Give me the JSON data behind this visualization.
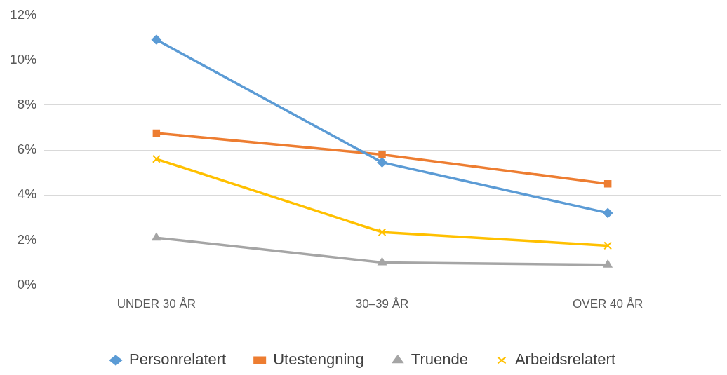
{
  "chart_data": {
    "type": "line",
    "categories": [
      "UNDER 30 ÅR",
      "30–39 ÅR",
      "OVER 40 ÅR"
    ],
    "series": [
      {
        "name": "Personrelatert",
        "color": "#5b9bd5",
        "marker": "diamond",
        "values": [
          10.9,
          5.45,
          3.2
        ]
      },
      {
        "name": "Utestengning",
        "color": "#ed7d31",
        "marker": "square",
        "values": [
          6.75,
          5.8,
          4.5
        ]
      },
      {
        "name": "Truende",
        "color": "#a5a5a5",
        "marker": "triangle",
        "values": [
          2.1,
          1.0,
          0.9
        ]
      },
      {
        "name": "Arbeidsrelatert",
        "color": "#ffc000",
        "marker": "cross",
        "values": [
          5.6,
          2.35,
          1.75
        ]
      }
    ],
    "ylim": [
      0,
      12
    ],
    "yticks": [
      {
        "value": 0,
        "label": "0%"
      },
      {
        "value": 2,
        "label": "2%"
      },
      {
        "value": 4,
        "label": "4%"
      },
      {
        "value": 6,
        "label": "6%"
      },
      {
        "value": 8,
        "label": "8%"
      },
      {
        "value": 10,
        "label": "10%"
      },
      {
        "value": 12,
        "label": "12%"
      }
    ],
    "grid": "y",
    "legend": "bottom",
    "line_style": "solid"
  }
}
